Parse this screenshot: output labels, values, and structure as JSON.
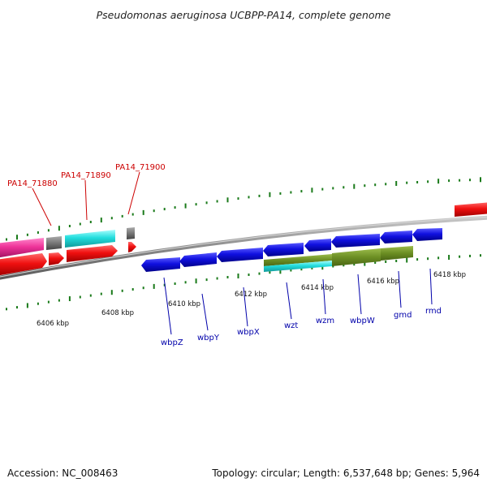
{
  "title": "Pseudomonas aeruginosa UCBPP-PA14, complete genome",
  "accession": "Accession: NC_008463",
  "topology": "Topology: circular; Length: 6,537,648 bp; Genes: 5,964",
  "colors": {
    "backbone": "#888888",
    "tick": "#1a7a1a",
    "forward_gene": "#0000dd",
    "reverse_gene": "#ee1111",
    "magenta_gene": "#ee3399",
    "cyan_gene": "#22dddd",
    "gray_gene": "#777777",
    "olive_gene": "#6b8e23",
    "red_label": "#cc0000",
    "blue_label": "#0000aa"
  },
  "scale_labels": [
    "6406 kbp",
    "6408 kbp",
    "6410 kbp",
    "6412 kbp",
    "6414 kbp",
    "6416 kbp",
    "6418 kbp"
  ],
  "upper_labels": [
    "PA14_71880",
    "PA14_71890",
    "PA14_71900"
  ],
  "lower_labels": [
    "wbpZ",
    "wbpY",
    "wbpX",
    "wzt",
    "wzm",
    "wbpW",
    "gmd",
    "rmd"
  ]
}
